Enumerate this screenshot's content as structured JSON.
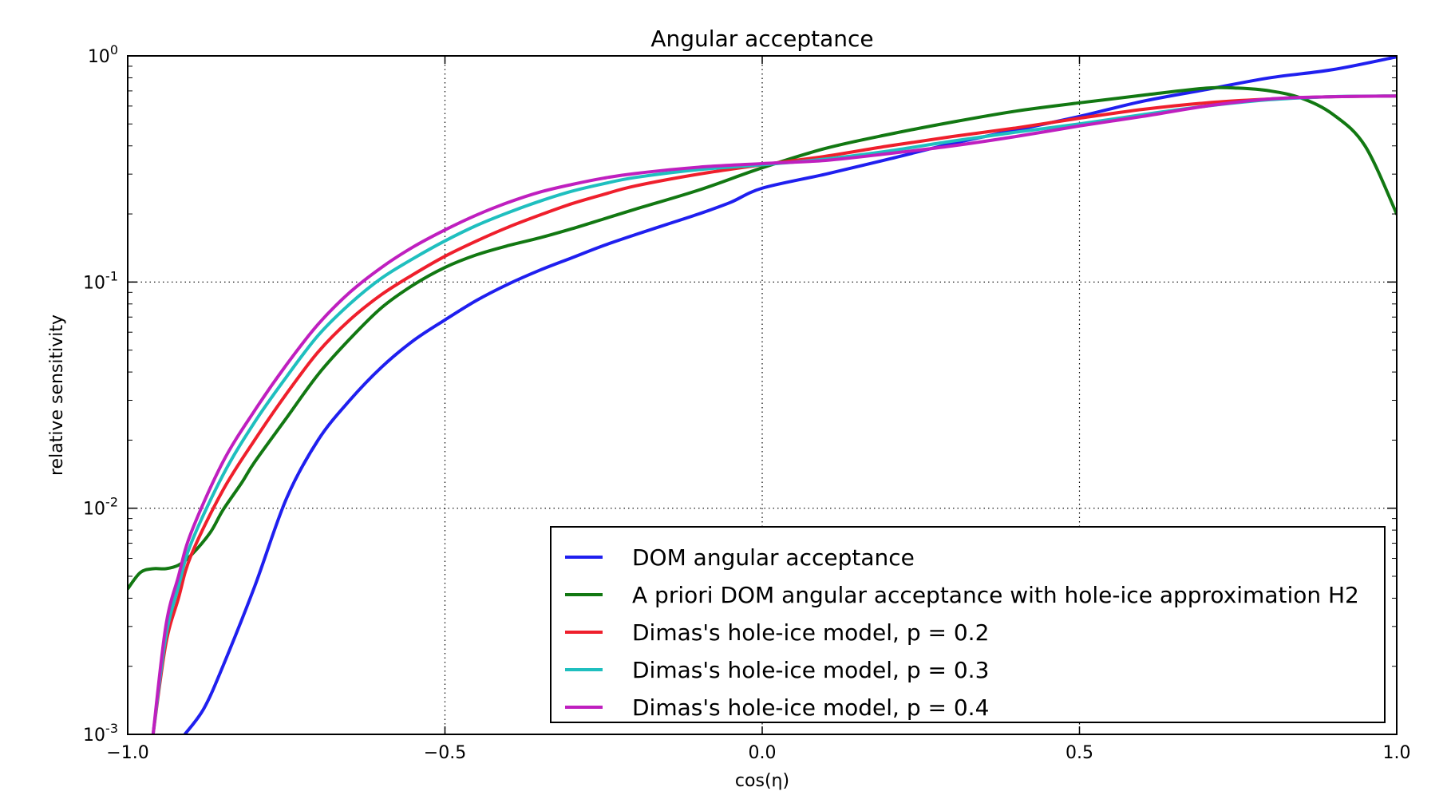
{
  "chart_data": {
    "type": "line",
    "title": "Angular acceptance",
    "xlabel": "cos(η)",
    "ylabel": "relative sensitivity",
    "xlim": [
      -1.0,
      1.0
    ],
    "ylim": [
      0.001,
      1.0
    ],
    "yscale": "log",
    "grid": true,
    "legend_position": "bottom-right",
    "x_ticks": [
      -1.0,
      -0.5,
      0.0,
      0.5,
      1.0
    ],
    "x_tick_labels": [
      "−1.0",
      "−0.5",
      "0.0",
      "0.5",
      "1.0"
    ],
    "y_ticks": [
      0.001,
      0.01,
      0.1,
      1.0
    ],
    "y_tick_labels": [
      {
        "base": "10",
        "exp": "-3"
      },
      {
        "base": "10",
        "exp": "-2"
      },
      {
        "base": "10",
        "exp": "-1"
      },
      {
        "base": "10",
        "exp": "0"
      }
    ],
    "series": [
      {
        "name": "DOM angular acceptance",
        "color": "#1f1fef",
        "points": [
          [
            -0.91,
            0.001
          ],
          [
            -0.88,
            0.0013
          ],
          [
            -0.85,
            0.002
          ],
          [
            -0.8,
            0.0045
          ],
          [
            -0.75,
            0.011
          ],
          [
            -0.7,
            0.02
          ],
          [
            -0.65,
            0.03
          ],
          [
            -0.6,
            0.042
          ],
          [
            -0.55,
            0.055
          ],
          [
            -0.5,
            0.068
          ],
          [
            -0.45,
            0.083
          ],
          [
            -0.4,
            0.098
          ],
          [
            -0.35,
            0.113
          ],
          [
            -0.3,
            0.128
          ],
          [
            -0.25,
            0.145
          ],
          [
            -0.2,
            0.162
          ],
          [
            -0.15,
            0.18
          ],
          [
            -0.1,
            0.2
          ],
          [
            -0.05,
            0.225
          ],
          [
            0.0,
            0.26
          ],
          [
            0.1,
            0.3
          ],
          [
            0.2,
            0.35
          ],
          [
            0.3,
            0.41
          ],
          [
            0.4,
            0.47
          ],
          [
            0.5,
            0.54
          ],
          [
            0.6,
            0.63
          ],
          [
            0.7,
            0.71
          ],
          [
            0.8,
            0.8
          ],
          [
            0.9,
            0.87
          ],
          [
            1.0,
            0.99
          ]
        ]
      },
      {
        "name": "A priori DOM angular acceptance with hole-ice approximation H2",
        "color": "#127812",
        "points": [
          [
            -1.0,
            0.0044
          ],
          [
            -0.98,
            0.0052
          ],
          [
            -0.96,
            0.0054
          ],
          [
            -0.94,
            0.0054
          ],
          [
            -0.92,
            0.0056
          ],
          [
            -0.9,
            0.0062
          ],
          [
            -0.87,
            0.0078
          ],
          [
            -0.85,
            0.0098
          ],
          [
            -0.82,
            0.013
          ],
          [
            -0.8,
            0.016
          ],
          [
            -0.75,
            0.025
          ],
          [
            -0.7,
            0.039
          ],
          [
            -0.65,
            0.056
          ],
          [
            -0.6,
            0.077
          ],
          [
            -0.55,
            0.097
          ],
          [
            -0.5,
            0.116
          ],
          [
            -0.45,
            0.132
          ],
          [
            -0.4,
            0.145
          ],
          [
            -0.35,
            0.157
          ],
          [
            -0.3,
            0.172
          ],
          [
            -0.25,
            0.19
          ],
          [
            -0.2,
            0.21
          ],
          [
            -0.1,
            0.255
          ],
          [
            0.0,
            0.32
          ],
          [
            0.1,
            0.39
          ],
          [
            0.2,
            0.45
          ],
          [
            0.3,
            0.51
          ],
          [
            0.4,
            0.57
          ],
          [
            0.5,
            0.62
          ],
          [
            0.6,
            0.67
          ],
          [
            0.7,
            0.72
          ],
          [
            0.75,
            0.72
          ],
          [
            0.8,
            0.7
          ],
          [
            0.85,
            0.65
          ],
          [
            0.9,
            0.55
          ],
          [
            0.95,
            0.4
          ],
          [
            1.0,
            0.2
          ]
        ]
      },
      {
        "name": "Dimas's hole-ice model, p = 0.2",
        "color": "#ef1f2c",
        "points": [
          [
            -0.96,
            0.001
          ],
          [
            -0.94,
            0.0025
          ],
          [
            -0.92,
            0.004
          ],
          [
            -0.9,
            0.0062
          ],
          [
            -0.85,
            0.012
          ],
          [
            -0.8,
            0.02
          ],
          [
            -0.75,
            0.032
          ],
          [
            -0.7,
            0.049
          ],
          [
            -0.65,
            0.068
          ],
          [
            -0.6,
            0.088
          ],
          [
            -0.55,
            0.108
          ],
          [
            -0.5,
            0.13
          ],
          [
            -0.45,
            0.152
          ],
          [
            -0.4,
            0.175
          ],
          [
            -0.35,
            0.198
          ],
          [
            -0.3,
            0.222
          ],
          [
            -0.25,
            0.244
          ],
          [
            -0.2,
            0.266
          ],
          [
            -0.1,
            0.3
          ],
          [
            0.0,
            0.33
          ],
          [
            0.1,
            0.36
          ],
          [
            0.2,
            0.4
          ],
          [
            0.3,
            0.44
          ],
          [
            0.4,
            0.48
          ],
          [
            0.5,
            0.53
          ],
          [
            0.6,
            0.58
          ],
          [
            0.7,
            0.62
          ],
          [
            0.8,
            0.645
          ],
          [
            0.9,
            0.66
          ],
          [
            1.0,
            0.665
          ]
        ]
      },
      {
        "name": "Dimas's hole-ice model, p = 0.3",
        "color": "#1fbfbf",
        "points": [
          [
            -0.96,
            0.001
          ],
          [
            -0.94,
            0.0027
          ],
          [
            -0.92,
            0.0045
          ],
          [
            -0.9,
            0.007
          ],
          [
            -0.85,
            0.014
          ],
          [
            -0.8,
            0.024
          ],
          [
            -0.75,
            0.038
          ],
          [
            -0.7,
            0.058
          ],
          [
            -0.65,
            0.08
          ],
          [
            -0.6,
            0.104
          ],
          [
            -0.55,
            0.127
          ],
          [
            -0.5,
            0.152
          ],
          [
            -0.45,
            0.178
          ],
          [
            -0.4,
            0.203
          ],
          [
            -0.35,
            0.228
          ],
          [
            -0.3,
            0.252
          ],
          [
            -0.25,
            0.272
          ],
          [
            -0.2,
            0.29
          ],
          [
            -0.1,
            0.314
          ],
          [
            0.0,
            0.33
          ],
          [
            0.1,
            0.35
          ],
          [
            0.2,
            0.38
          ],
          [
            0.3,
            0.42
          ],
          [
            0.4,
            0.46
          ],
          [
            0.5,
            0.5
          ],
          [
            0.6,
            0.55
          ],
          [
            0.7,
            0.6
          ],
          [
            0.8,
            0.64
          ],
          [
            0.9,
            0.66
          ],
          [
            1.0,
            0.665
          ]
        ]
      },
      {
        "name": "Dimas's hole-ice model, p = 0.4",
        "color": "#bf1fbf",
        "points": [
          [
            -0.96,
            0.001
          ],
          [
            -0.94,
            0.003
          ],
          [
            -0.92,
            0.005
          ],
          [
            -0.9,
            0.0078
          ],
          [
            -0.85,
            0.016
          ],
          [
            -0.8,
            0.027
          ],
          [
            -0.75,
            0.043
          ],
          [
            -0.7,
            0.065
          ],
          [
            -0.65,
            0.09
          ],
          [
            -0.6,
            0.116
          ],
          [
            -0.55,
            0.143
          ],
          [
            -0.5,
            0.17
          ],
          [
            -0.45,
            0.198
          ],
          [
            -0.4,
            0.225
          ],
          [
            -0.35,
            0.25
          ],
          [
            -0.3,
            0.27
          ],
          [
            -0.25,
            0.288
          ],
          [
            -0.2,
            0.302
          ],
          [
            -0.1,
            0.322
          ],
          [
            0.0,
            0.334
          ],
          [
            0.1,
            0.345
          ],
          [
            0.2,
            0.37
          ],
          [
            0.3,
            0.4
          ],
          [
            0.4,
            0.44
          ],
          [
            0.5,
            0.49
          ],
          [
            0.6,
            0.54
          ],
          [
            0.7,
            0.6
          ],
          [
            0.8,
            0.645
          ],
          [
            0.9,
            0.66
          ],
          [
            1.0,
            0.665
          ]
        ]
      }
    ]
  }
}
